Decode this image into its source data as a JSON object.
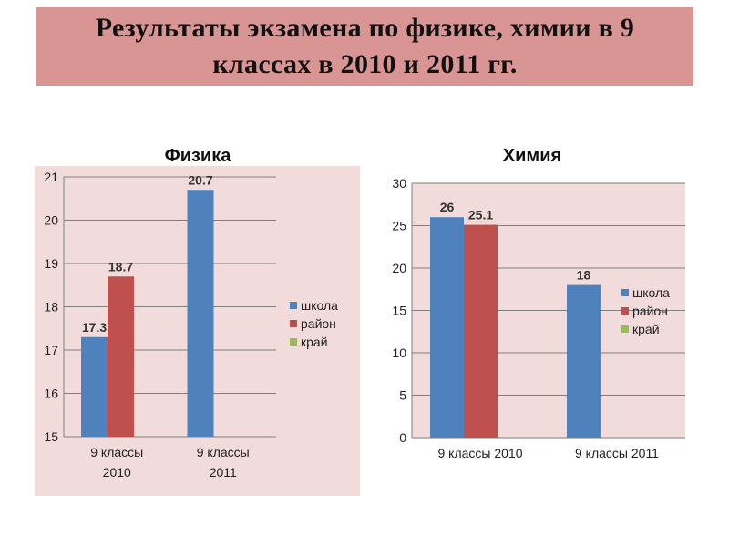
{
  "title": "Результаты экзамена по физике, химии в 9 классах в 2010 и 2011 гг.",
  "colors": {
    "banner": "#d99594",
    "chart_bg": "#f2dcdb",
    "school": "#4f81bd",
    "district": "#c0504d",
    "region": "#9bbb59"
  },
  "chart_data": [
    {
      "type": "bar",
      "title": "Физика",
      "categories": [
        "9 классы 2010",
        "9 классы 2011"
      ],
      "series": [
        {
          "name": "школа",
          "values": [
            17.3,
            20.7
          ]
        },
        {
          "name": "район",
          "values": [
            18.7,
            null
          ]
        },
        {
          "name": "край",
          "values": [
            null,
            null
          ]
        }
      ],
      "ylim": [
        15,
        21
      ],
      "yticks": [
        15,
        16,
        17,
        18,
        19,
        20,
        21
      ],
      "grid": true,
      "legend": "right"
    },
    {
      "type": "bar",
      "title": "Химия",
      "categories": [
        "9 классы 2010",
        "9 классы 2011"
      ],
      "series": [
        {
          "name": "школа",
          "values": [
            26,
            18
          ]
        },
        {
          "name": "район",
          "values": [
            25.1,
            null
          ]
        },
        {
          "name": "край",
          "values": [
            null,
            null
          ]
        }
      ],
      "ylim": [
        0,
        30
      ],
      "yticks": [
        0,
        5,
        10,
        15,
        20,
        25,
        30
      ],
      "grid": true,
      "legend": "right"
    }
  ]
}
